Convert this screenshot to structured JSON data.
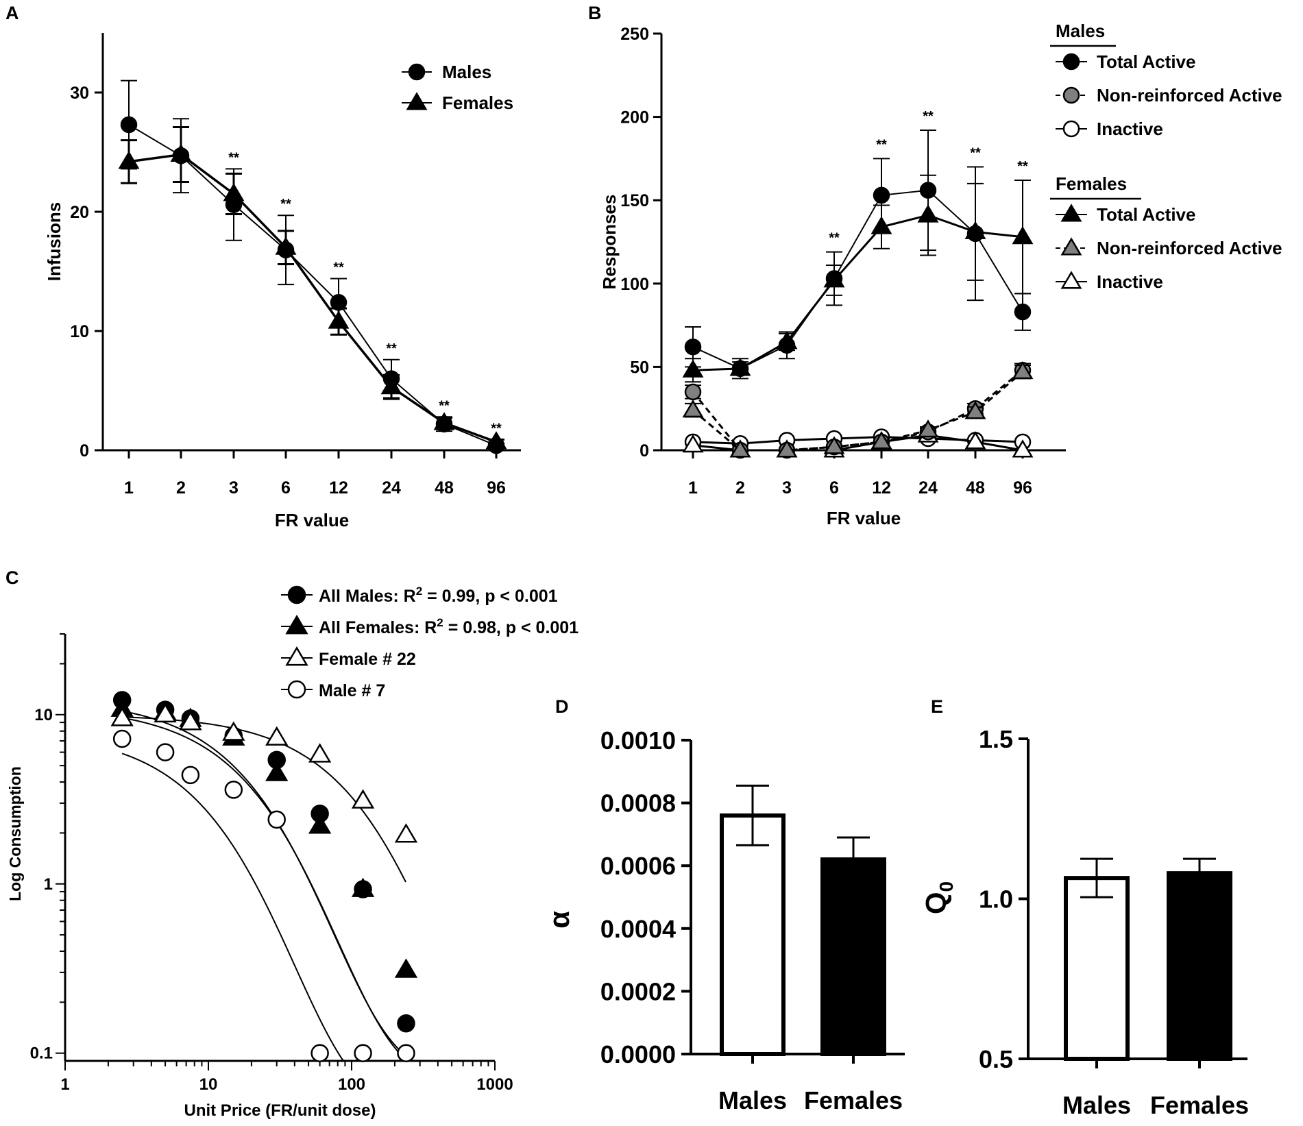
{
  "panel_labels": [
    "A",
    "B",
    "C",
    "D",
    "E"
  ],
  "chart_data": [
    {
      "id": "A",
      "type": "line",
      "xlabel": "FR value",
      "ylabel": "Infusions",
      "categories": [
        "1",
        "2",
        "3",
        "6",
        "12",
        "24",
        "48",
        "96"
      ],
      "ylim": [
        0,
        35
      ],
      "yticks": [
        0,
        10,
        20,
        30
      ],
      "series": [
        {
          "name": "Males",
          "marker": "circle",
          "fill": "#000000",
          "values": [
            27.3,
            24.7,
            20.6,
            16.8,
            12.4,
            6.0,
            2.2,
            0.4
          ],
          "errors": [
            3.7,
            3.1,
            3.0,
            2.9,
            2.0,
            1.6,
            0.6,
            0.2
          ]
        },
        {
          "name": "Females",
          "marker": "triangle",
          "fill": "#000000",
          "values": [
            24.2,
            24.8,
            21.5,
            17.0,
            10.8,
            5.3,
            2.3,
            0.7
          ],
          "errors": [
            1.8,
            2.3,
            1.7,
            1.4,
            1.1,
            1.0,
            0.4,
            0.2
          ]
        }
      ],
      "significance": [
        "",
        "",
        "**",
        "**",
        "**",
        "**",
        "**",
        "**"
      ]
    },
    {
      "id": "B",
      "type": "line",
      "xlabel": "FR value",
      "ylabel": "Responses",
      "categories": [
        "1",
        "2",
        "3",
        "6",
        "12",
        "24",
        "48",
        "96"
      ],
      "ylim": [
        0,
        250
      ],
      "yticks": [
        0,
        50,
        100,
        150,
        200,
        250
      ],
      "legend_groups": [
        "Males",
        "Females"
      ],
      "series": [
        {
          "name": "Total Active",
          "group": "Males",
          "marker": "circle",
          "fill": "#000000",
          "dash": false,
          "values": [
            62,
            49,
            63,
            103,
            153,
            156,
            130,
            83
          ],
          "errors": [
            12,
            6,
            8,
            16,
            22,
            36,
            40,
            11
          ]
        },
        {
          "name": "Non-reinforced Active",
          "group": "Males",
          "marker": "circle",
          "fill": "#808080",
          "dash": true,
          "values": [
            35,
            0,
            0,
            2,
            5,
            11,
            25,
            48
          ],
          "errors": [
            4,
            0,
            0,
            1,
            1,
            2,
            3,
            4
          ]
        },
        {
          "name": "Inactive",
          "group": "Males",
          "marker": "circle",
          "fill": "#ffffff",
          "dash": false,
          "values": [
            5,
            4,
            6,
            7,
            8,
            7,
            6,
            5
          ],
          "errors": [
            1,
            1,
            1,
            1,
            1,
            1,
            1,
            1
          ]
        },
        {
          "name": "Total Active",
          "group": "Females",
          "marker": "triangle",
          "fill": "#000000",
          "dash": false,
          "values": [
            48,
            49,
            65,
            102,
            134,
            141,
            131,
            128
          ],
          "errors": [
            7,
            4,
            5,
            9,
            13,
            24,
            29,
            34
          ]
        },
        {
          "name": "Non-reinforced Active",
          "group": "Females",
          "marker": "triangle",
          "fill": "#808080",
          "dash": true,
          "values": [
            24,
            0,
            0,
            2,
            5,
            12,
            23,
            47
          ],
          "errors": [
            4,
            0,
            0,
            1,
            1,
            2,
            3,
            4
          ]
        },
        {
          "name": "Inactive",
          "group": "Females",
          "marker": "triangle",
          "fill": "#ffffff",
          "dash": false,
          "values": [
            3,
            0,
            0,
            0,
            5,
            9,
            5,
            0
          ],
          "errors": [
            1,
            0,
            0,
            0,
            1,
            1,
            1,
            0
          ]
        }
      ],
      "significance": [
        "",
        "",
        "",
        "**",
        "**",
        "**",
        "**",
        "**"
      ]
    },
    {
      "id": "C",
      "type": "scatter",
      "xscale": "log",
      "yscale": "log",
      "xlabel": "Unit Price (FR/unit dose)",
      "ylabel": "Log Consumption",
      "xlim": [
        1,
        1000
      ],
      "ylim": [
        0.09,
        30
      ],
      "xticks": [
        1,
        10,
        100,
        1000
      ],
      "yticks": [
        0.1,
        1,
        10
      ],
      "ytick_labels": [
        "0.1",
        "1",
        "10"
      ],
      "series": [
        {
          "name": "All Males",
          "label_prefix": "All Males:  R",
          "superscript": "2",
          "label_suffix": " = 0.99, p  < 0.001",
          "marker": "circle",
          "fill": "#000000",
          "x": [
            2.5,
            5,
            7.5,
            15,
            30,
            60,
            120,
            240
          ],
          "y": [
            12.2,
            10.7,
            9.5,
            7.5,
            5.4,
            2.6,
            0.93,
            0.15
          ],
          "fit": {
            "Q0": 12.4,
            "k": 2.2,
            "alpha": 0.00107
          }
        },
        {
          "name": "All Females",
          "label_prefix": "All Females:  R",
          "superscript": "2",
          "label_suffix": " = 0.98, p < 0.001",
          "marker": "triangle",
          "fill": "#000000",
          "x": [
            2.5,
            5,
            7.5,
            15,
            30,
            60,
            120,
            240
          ],
          "y": [
            10.8,
            10.3,
            9.4,
            7.3,
            4.5,
            2.2,
            0.93,
            0.31
          ],
          "fit": {
            "Q0": 11.2,
            "k": 2.2,
            "alpha": 0.00111
          }
        },
        {
          "name": "Female # 22",
          "label_prefix": "Female # 22",
          "superscript": "",
          "label_suffix": "",
          "marker": "triangle",
          "fill": "#ffffff",
          "x": [
            2.5,
            5,
            7.5,
            15,
            30,
            60,
            120,
            240
          ],
          "y": [
            9.5,
            10.0,
            9.0,
            7.8,
            7.3,
            5.8,
            3.1,
            1.95
          ],
          "fit": {
            "Q0": 10.0,
            "k": 2.2,
            "alpha": 0.00025
          }
        },
        {
          "name": "Male # 7",
          "label_prefix": "Male # 7",
          "superscript": "",
          "label_suffix": "",
          "marker": "circle",
          "fill": "#ffffff",
          "x": [
            2.5,
            5,
            7.5,
            15,
            30,
            60,
            120,
            240
          ],
          "y": [
            7.2,
            6.0,
            4.4,
            3.6,
            2.4,
            0.1,
            0.1,
            0.1
          ],
          "fit": {
            "Q0": 8.0,
            "k": 2.2,
            "alpha": 0.0031
          }
        }
      ]
    },
    {
      "id": "D",
      "type": "bar",
      "ylabel": "α",
      "categories": [
        "Males",
        "Females"
      ],
      "values": [
        0.00076,
        0.00062
      ],
      "errors": [
        9.5e-05,
        7e-05
      ],
      "fills": [
        "#ffffff",
        "#000000"
      ],
      "ylim": [
        0,
        0.001
      ],
      "yticks": [
        0,
        0.0002,
        0.0004,
        0.0006,
        0.0008,
        0.001
      ],
      "ytick_labels": [
        "0.0000",
        "0.0002",
        "0.0004",
        "0.0006",
        "0.0008",
        "0.0010"
      ]
    },
    {
      "id": "E",
      "type": "bar",
      "ylabel": "Q",
      "ylabel_subscript": "0",
      "categories": [
        "Males",
        "Females"
      ],
      "values": [
        1.065,
        1.08
      ],
      "errors": [
        0.06,
        0.045
      ],
      "fills": [
        "#ffffff",
        "#000000"
      ],
      "ylim": [
        0.5,
        1.5
      ],
      "yticks": [
        0.5,
        1.0,
        1.5
      ],
      "ytick_labels": [
        "0.5",
        "1.0",
        "1.5"
      ]
    }
  ]
}
